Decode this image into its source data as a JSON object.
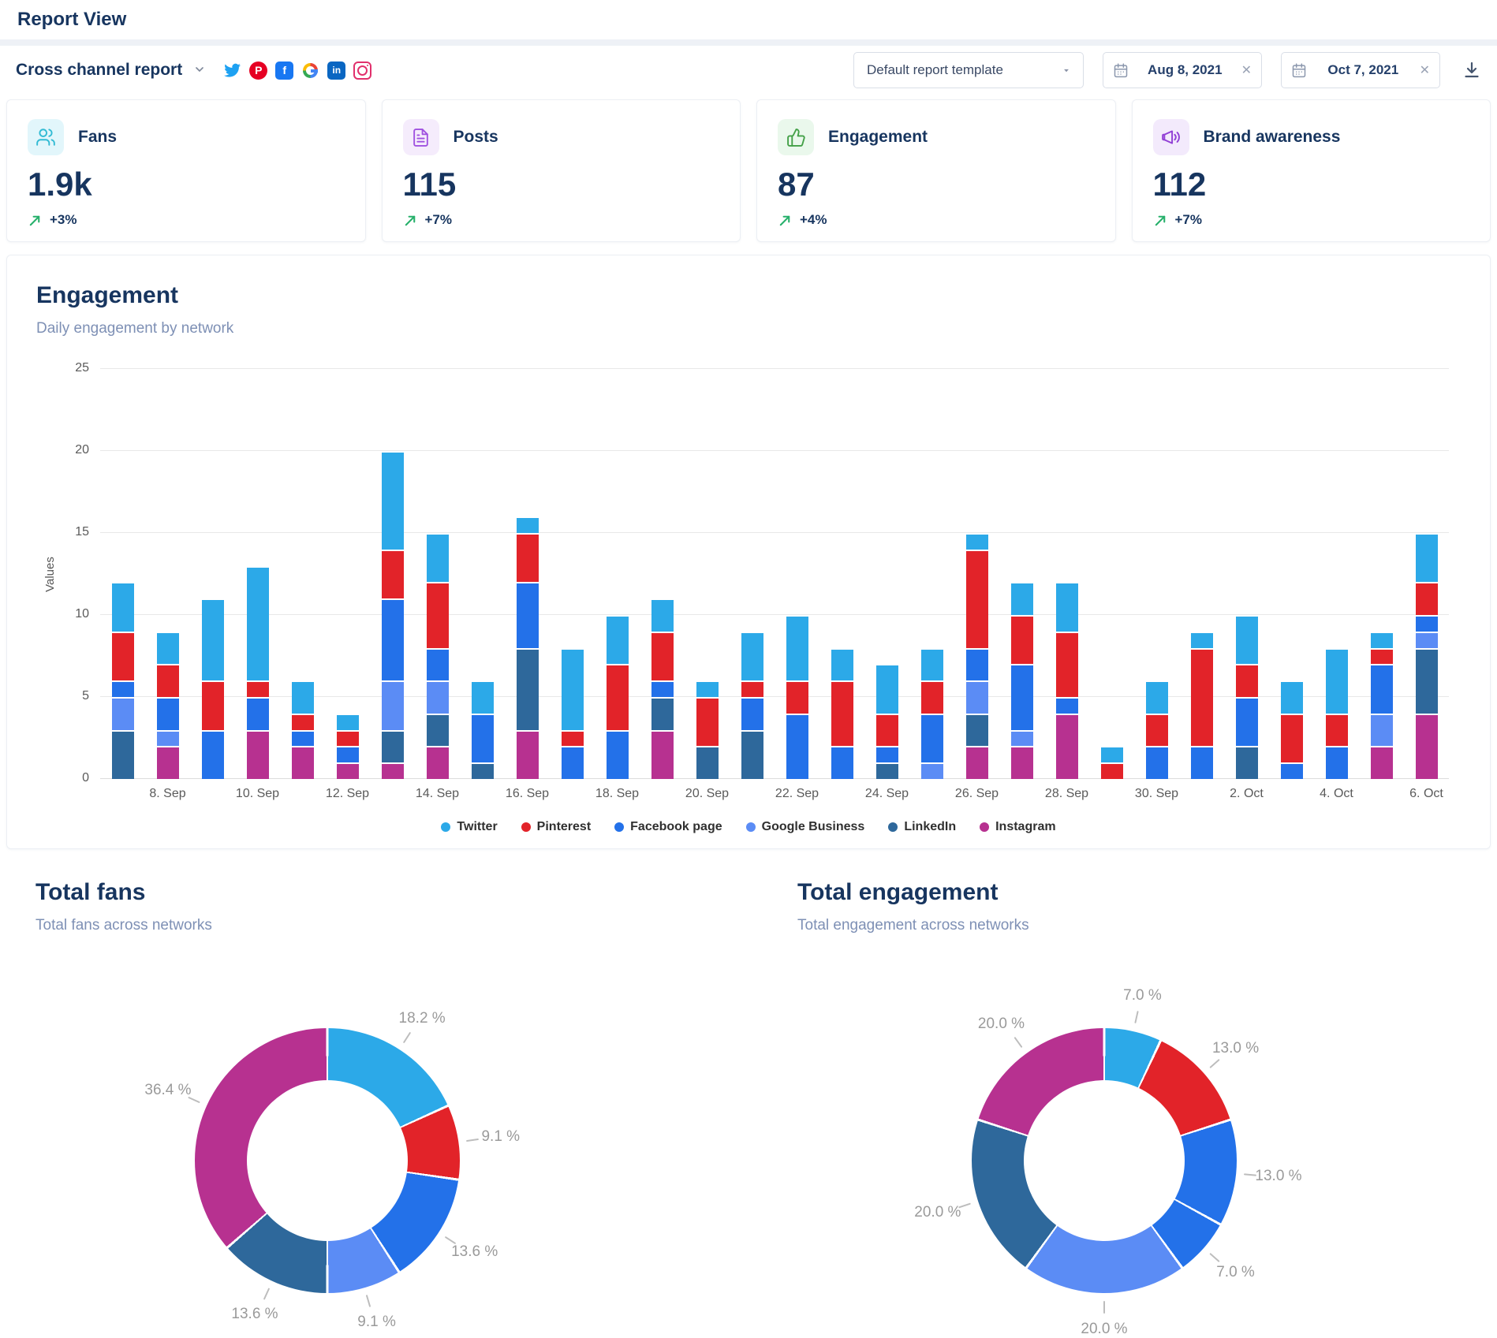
{
  "page": {
    "title": "Report View"
  },
  "toolbar": {
    "report_name": "Cross channel report",
    "template_select": {
      "value": "Default report template"
    },
    "date_from": {
      "value": "Aug 8, 2021"
    },
    "date_to": {
      "value": "Oct 7, 2021"
    },
    "social_icons": [
      "twitter",
      "pinterest",
      "facebook",
      "google",
      "linkedin",
      "instagram"
    ]
  },
  "kpis": [
    {
      "label": "Fans",
      "value": "1.9k",
      "trend": "+3%",
      "icon": "users-icon"
    },
    {
      "label": "Posts",
      "value": "115",
      "trend": "+7%",
      "icon": "file-text-icon"
    },
    {
      "label": "Engagement",
      "value": "87",
      "trend": "+4%",
      "icon": "thumbs-up-icon"
    },
    {
      "label": "Brand awareness",
      "value": "112",
      "trend": "+7%",
      "icon": "megaphone-icon"
    }
  ],
  "colors": {
    "accent_navy": "#17355f",
    "trend_green": "#27b06b",
    "Twitter": "#2CA9E8",
    "Pinterest": "#E22329",
    "Facebook page": "#2371E9",
    "Google Business": "#5B8CF5",
    "LinkedIn": "#2E689B",
    "Instagram": "#B73190"
  },
  "chart_data": [
    {
      "type": "bar",
      "stacked": true,
      "title": "Engagement",
      "subtitle": "Daily engagement by network",
      "ylabel": "Values",
      "ylim": [
        0,
        25
      ],
      "yticks": [
        0,
        5,
        10,
        15,
        20,
        25
      ],
      "grid": true,
      "legend_position": "bottom",
      "categories": [
        "7. Sep",
        "8. Sep",
        "9. Sep",
        "10. Sep",
        "11. Sep",
        "12. Sep",
        "13. Sep",
        "14. Sep",
        "15. Sep",
        "16. Sep",
        "17. Sep",
        "18. Sep",
        "19. Sep",
        "20. Sep",
        "21. Sep",
        "22. Sep",
        "23. Sep",
        "24. Sep",
        "25. Sep",
        "26. Sep",
        "27. Sep",
        "28. Sep",
        "29. Sep",
        "30. Sep",
        "1. Oct",
        "2. Oct",
        "3. Oct",
        "4. Oct",
        "5. Oct",
        "6. Oct"
      ],
      "tick_labels": [
        "8. Sep",
        "10. Sep",
        "12. Sep",
        "14. Sep",
        "16. Sep",
        "18. Sep",
        "20. Sep",
        "22. Sep",
        "24. Sep",
        "26. Sep",
        "28. Sep",
        "30. Sep",
        "2. Oct",
        "4. Oct",
        "6. Oct"
      ],
      "series": [
        {
          "name": "Instagram",
          "color": "#B73190",
          "values": [
            0,
            2,
            0,
            3,
            2,
            1,
            1,
            2,
            0,
            3,
            0,
            0,
            3,
            0,
            0,
            0,
            0,
            0,
            0,
            2,
            2,
            4,
            0,
            0,
            0,
            0,
            0,
            0,
            2,
            4
          ]
        },
        {
          "name": "LinkedIn",
          "color": "#2E689B",
          "values": [
            3,
            0,
            0,
            0,
            0,
            0,
            2,
            2,
            1,
            5,
            0,
            0,
            2,
            2,
            3,
            0,
            0,
            1,
            0,
            2,
            0,
            0,
            0,
            0,
            0,
            2,
            0,
            0,
            0,
            4
          ]
        },
        {
          "name": "Google Business",
          "color": "#5B8CF5",
          "values": [
            2,
            1,
            0,
            0,
            0,
            0,
            3,
            2,
            0,
            0,
            0,
            0,
            0,
            0,
            0,
            0,
            0,
            0,
            1,
            2,
            1,
            0,
            0,
            0,
            0,
            0,
            0,
            0,
            2,
            1
          ]
        },
        {
          "name": "Facebook page",
          "color": "#2371E9",
          "values": [
            1,
            2,
            3,
            2,
            1,
            1,
            5,
            2,
            3,
            4,
            2,
            3,
            1,
            0,
            2,
            4,
            2,
            1,
            3,
            2,
            4,
            1,
            0,
            2,
            2,
            3,
            1,
            2,
            3,
            1
          ]
        },
        {
          "name": "Pinterest",
          "color": "#E22329",
          "values": [
            3,
            2,
            3,
            1,
            1,
            1,
            3,
            4,
            0,
            3,
            1,
            4,
            3,
            3,
            1,
            2,
            4,
            2,
            2,
            6,
            3,
            4,
            1,
            2,
            6,
            2,
            3,
            2,
            1,
            2
          ]
        },
        {
          "name": "Twitter",
          "color": "#2CA9E8",
          "values": [
            3,
            2,
            5,
            7,
            2,
            1,
            6,
            3,
            2,
            1,
            5,
            3,
            2,
            1,
            3,
            4,
            2,
            3,
            2,
            1,
            2,
            3,
            1,
            2,
            1,
            3,
            2,
            4,
            1,
            3
          ]
        }
      ],
      "legend": [
        {
          "name": "Twitter",
          "color": "#2CA9E8"
        },
        {
          "name": "Pinterest",
          "color": "#E22329"
        },
        {
          "name": "Facebook page",
          "color": "#2371E9"
        },
        {
          "name": "Google Business",
          "color": "#5B8CF5"
        },
        {
          "name": "LinkedIn",
          "color": "#2E689B"
        },
        {
          "name": "Instagram",
          "color": "#B73190"
        }
      ]
    },
    {
      "type": "pie",
      "title": "Total fans",
      "subtitle": "Total fans across networks",
      "donut": true,
      "slices": [
        {
          "network": "Twitter",
          "color": "#2CA9E8",
          "value": 18.2,
          "label": "18.2 %"
        },
        {
          "network": "Pinterest",
          "color": "#E22329",
          "value": 9.1,
          "label": "9.1 %"
        },
        {
          "network": "Facebook page",
          "color": "#2371E9",
          "value": 13.6,
          "label": "13.6 %"
        },
        {
          "network": "Google Business",
          "color": "#5B8CF5",
          "value": 9.1,
          "label": "9.1 %"
        },
        {
          "network": "LinkedIn",
          "color": "#2E689B",
          "value": 13.6,
          "label": "13.6 %"
        },
        {
          "network": "Instagram",
          "color": "#B73190",
          "value": 36.4,
          "label": "36.4 %"
        }
      ]
    },
    {
      "type": "pie",
      "title": "Total engagement",
      "subtitle": "Total engagement across networks",
      "donut": true,
      "slices": [
        {
          "network": "Twitter",
          "color": "#2CA9E8",
          "value": 7,
          "label": "7.0 %"
        },
        {
          "network": "Pinterest",
          "color": "#E22329",
          "value": 13,
          "label": "13.0 %"
        },
        {
          "network": "Facebook page",
          "color": "#2371E9",
          "value": 13,
          "label": "13.0 %"
        },
        {
          "network": "Facebook page",
          "color": "#2371E9",
          "value": 7,
          "label": "7.0 %"
        },
        {
          "network": "Google Business",
          "color": "#5B8CF5",
          "value": 20,
          "label": "20.0 %"
        },
        {
          "network": "LinkedIn",
          "color": "#2E689B",
          "value": 20,
          "label": "20.0 %"
        },
        {
          "network": "Instagram",
          "color": "#B73190",
          "value": 20,
          "label": "20.0 %"
        }
      ]
    }
  ]
}
